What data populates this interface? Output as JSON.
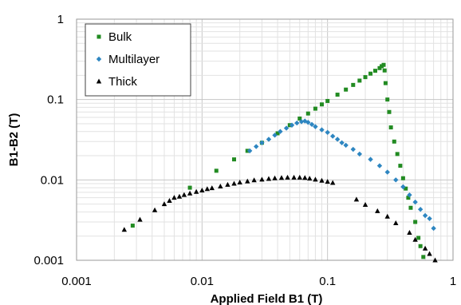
{
  "chart_data": {
    "type": "scatter",
    "title": "",
    "xlabel": "Applied Field B1 (T)",
    "ylabel": "B1-B2 (T)",
    "xscale": "log",
    "yscale": "log",
    "xlim": [
      0.001,
      1
    ],
    "ylim": [
      0.001,
      1
    ],
    "x_ticks": [
      "0.001",
      "0.01",
      "0.1",
      "1"
    ],
    "y_ticks": [
      "0.001",
      "0.01",
      "0.1",
      "1"
    ],
    "grid": "major and minor",
    "legend_position": "top-left",
    "series": [
      {
        "name": "Bulk",
        "marker": "square",
        "color": "#228B22",
        "points": [
          [
            0.0028,
            0.0027
          ],
          [
            0.008,
            0.008
          ],
          [
            0.013,
            0.013
          ],
          [
            0.018,
            0.018
          ],
          [
            0.023,
            0.023
          ],
          [
            0.03,
            0.029
          ],
          [
            0.04,
            0.038
          ],
          [
            0.05,
            0.048
          ],
          [
            0.06,
            0.058
          ],
          [
            0.07,
            0.067
          ],
          [
            0.08,
            0.077
          ],
          [
            0.09,
            0.087
          ],
          [
            0.1,
            0.096
          ],
          [
            0.12,
            0.115
          ],
          [
            0.14,
            0.133
          ],
          [
            0.16,
            0.152
          ],
          [
            0.18,
            0.172
          ],
          [
            0.2,
            0.19
          ],
          [
            0.22,
            0.21
          ],
          [
            0.24,
            0.228
          ],
          [
            0.26,
            0.246
          ],
          [
            0.27,
            0.26
          ],
          [
            0.28,
            0.27
          ],
          [
            0.285,
            0.23
          ],
          [
            0.29,
            0.16
          ],
          [
            0.3,
            0.1
          ],
          [
            0.31,
            0.07
          ],
          [
            0.32,
            0.045
          ],
          [
            0.34,
            0.03
          ],
          [
            0.36,
            0.021
          ],
          [
            0.38,
            0.015
          ],
          [
            0.4,
            0.0105
          ],
          [
            0.42,
            0.0078
          ],
          [
            0.44,
            0.006
          ],
          [
            0.46,
            0.0045
          ],
          [
            0.5,
            0.003
          ],
          [
            0.53,
            0.0019
          ],
          [
            0.55,
            0.0015
          ],
          [
            0.58,
            0.0011
          ]
        ]
      },
      {
        "name": "Multilayer",
        "marker": "diamond",
        "color": "#2E86C1",
        "points": [
          [
            0.024,
            0.023
          ],
          [
            0.027,
            0.026
          ],
          [
            0.03,
            0.029
          ],
          [
            0.034,
            0.032
          ],
          [
            0.038,
            0.036
          ],
          [
            0.042,
            0.04
          ],
          [
            0.047,
            0.044
          ],
          [
            0.052,
            0.048
          ],
          [
            0.057,
            0.051
          ],
          [
            0.062,
            0.053
          ],
          [
            0.066,
            0.054
          ],
          [
            0.07,
            0.052
          ],
          [
            0.075,
            0.049
          ],
          [
            0.08,
            0.046
          ],
          [
            0.09,
            0.042
          ],
          [
            0.1,
            0.039
          ],
          [
            0.11,
            0.035
          ],
          [
            0.12,
            0.032
          ],
          [
            0.13,
            0.029
          ],
          [
            0.14,
            0.027
          ],
          [
            0.16,
            0.024
          ],
          [
            0.18,
            0.021
          ],
          [
            0.22,
            0.018
          ],
          [
            0.26,
            0.015
          ],
          [
            0.3,
            0.0125
          ],
          [
            0.35,
            0.01
          ],
          [
            0.4,
            0.0082
          ],
          [
            0.45,
            0.0065
          ],
          [
            0.5,
            0.0053
          ],
          [
            0.55,
            0.0043
          ],
          [
            0.6,
            0.0036
          ],
          [
            0.65,
            0.0033
          ],
          [
            0.7,
            0.0025
          ]
        ]
      },
      {
        "name": "Thick",
        "marker": "triangle",
        "color": "#000000",
        "points": [
          [
            0.0024,
            0.0024
          ],
          [
            0.0032,
            0.0032
          ],
          [
            0.0042,
            0.0042
          ],
          [
            0.005,
            0.005
          ],
          [
            0.0055,
            0.0055
          ],
          [
            0.006,
            0.006
          ],
          [
            0.0066,
            0.0062
          ],
          [
            0.0072,
            0.0065
          ],
          [
            0.008,
            0.0068
          ],
          [
            0.009,
            0.0071
          ],
          [
            0.01,
            0.0074
          ],
          [
            0.011,
            0.0077
          ],
          [
            0.012,
            0.0079
          ],
          [
            0.014,
            0.0083
          ],
          [
            0.016,
            0.0087
          ],
          [
            0.018,
            0.009
          ],
          [
            0.02,
            0.0093
          ],
          [
            0.023,
            0.0096
          ],
          [
            0.026,
            0.0099
          ],
          [
            0.03,
            0.0101
          ],
          [
            0.034,
            0.0103
          ],
          [
            0.038,
            0.0105
          ],
          [
            0.043,
            0.0106
          ],
          [
            0.048,
            0.0107
          ],
          [
            0.054,
            0.0107
          ],
          [
            0.06,
            0.0107
          ],
          [
            0.066,
            0.0106
          ],
          [
            0.072,
            0.0104
          ],
          [
            0.08,
            0.0101
          ],
          [
            0.09,
            0.0098
          ],
          [
            0.1,
            0.0095
          ],
          [
            0.11,
            0.0092
          ],
          [
            0.17,
            0.0057
          ],
          [
            0.2,
            0.0049
          ],
          [
            0.25,
            0.0041
          ],
          [
            0.3,
            0.0035
          ],
          [
            0.35,
            0.0029
          ],
          [
            0.45,
            0.0022
          ],
          [
            0.5,
            0.0018
          ],
          [
            0.6,
            0.0014
          ],
          [
            0.65,
            0.0012
          ],
          [
            0.72,
            0.001
          ]
        ]
      }
    ]
  }
}
